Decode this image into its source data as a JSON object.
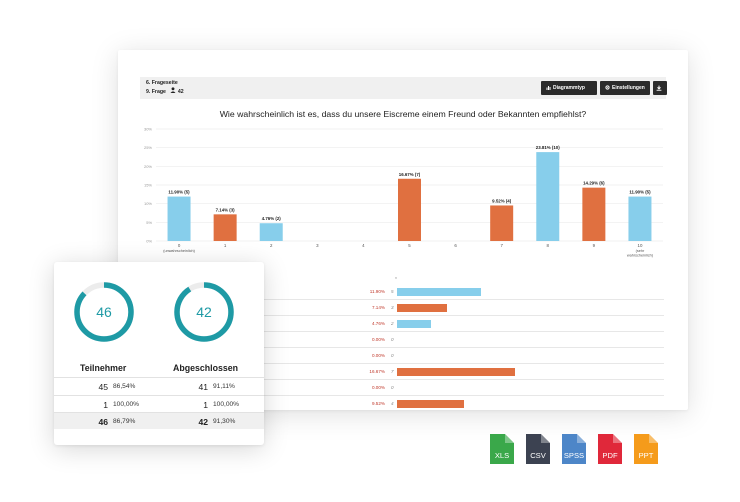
{
  "report": {
    "page_label": "6. Frageseite",
    "question_label": "9. Frage",
    "respondents": "42",
    "buttons": {
      "chart_type": "Diagrammtyp",
      "settings": "Einstellungen"
    },
    "question_title": "Wie wahrscheinlich ist es, dass du unsere Eiscreme einem Freund oder Bekannten empfiehlst?"
  },
  "chart_data": {
    "type": "bar",
    "categories": [
      "0",
      "1",
      "2",
      "3",
      "4",
      "5",
      "6",
      "7",
      "8",
      "9",
      "10"
    ],
    "category_sublabels": [
      "(unwahrscheinlich)",
      "",
      "",
      "",
      "",
      "",
      "",
      "",
      "",
      "",
      "(sehr wahrscheinlich)"
    ],
    "values": [
      11.9,
      7.14,
      4.76,
      0,
      0,
      16.67,
      0,
      9.52,
      23.81,
      14.29,
      11.9
    ],
    "counts": [
      5,
      3,
      2,
      0,
      0,
      7,
      0,
      4,
      10,
      6,
      5
    ],
    "data_labels": [
      "11.90% (5)",
      "7.14% (3)",
      "4.76% (2)",
      "",
      "",
      "16.67% (7)",
      "",
      "9.52% (4)",
      "23.81% (10)",
      "14.29% (6)",
      "11.90% (5)"
    ],
    "colors": [
      "#87ceeb",
      "#e07040",
      "#87ceeb",
      "#87ceeb",
      "#87ceeb",
      "#e07040",
      "#87ceeb",
      "#e07040",
      "#87ceeb",
      "#e07040",
      "#87ceeb"
    ],
    "yticks": [
      "0%",
      "5%",
      "10%",
      "15%",
      "20%",
      "25%",
      "30%"
    ],
    "ylim": [
      0,
      30
    ],
    "grid": true
  },
  "table": {
    "header": "n",
    "rows": [
      {
        "percent": "11.90%",
        "count": "5",
        "value": 11.9,
        "color": "#87ceeb"
      },
      {
        "percent": "7.14%",
        "count": "3",
        "value": 7.14,
        "color": "#e07040"
      },
      {
        "percent": "4.76%",
        "count": "2",
        "value": 4.76,
        "color": "#87ceeb"
      },
      {
        "percent": "0.00%",
        "count": "0",
        "value": 0,
        "color": "#87ceeb"
      },
      {
        "percent": "0.00%",
        "count": "0",
        "value": 0,
        "color": "#87ceeb"
      },
      {
        "percent": "16.67%",
        "count": "7",
        "value": 16.67,
        "color": "#e07040"
      },
      {
        "percent": "0.00%",
        "count": "0",
        "value": 0,
        "color": "#87ceeb"
      },
      {
        "percent": "9.52%",
        "count": "4",
        "value": 9.52,
        "color": "#e07040"
      }
    ]
  },
  "stats": {
    "ring_color": "#1e9aa5",
    "participants": {
      "label": "Teilnehmer",
      "ring_value": "46",
      "ring_fraction": 0.87
    },
    "completed": {
      "label": "Abgeschlossen",
      "ring_value": "42",
      "ring_fraction": 0.91
    },
    "rows": [
      {
        "n1": "45",
        "p1": "86,54%",
        "n2": "41",
        "p2": "91,11%"
      },
      {
        "n1": "1",
        "p1": "100,00%",
        "n2": "1",
        "p2": "100,00%"
      },
      {
        "n1": "46",
        "p1": "86,79%",
        "n2": "42",
        "p2": "91,30%"
      }
    ]
  },
  "exports": [
    {
      "label": "XLS",
      "color": "#3aa84a",
      "icon": "xls-file-icon"
    },
    {
      "label": "CSV",
      "color": "#3c4251",
      "icon": "csv-file-icon"
    },
    {
      "label": "SPSS",
      "color": "#4d86c8",
      "icon": "spss-file-icon"
    },
    {
      "label": "PDF",
      "color": "#e0283a",
      "icon": "pdf-file-icon"
    },
    {
      "label": "PPT",
      "color": "#f59b1b",
      "icon": "ppt-file-icon"
    }
  ]
}
